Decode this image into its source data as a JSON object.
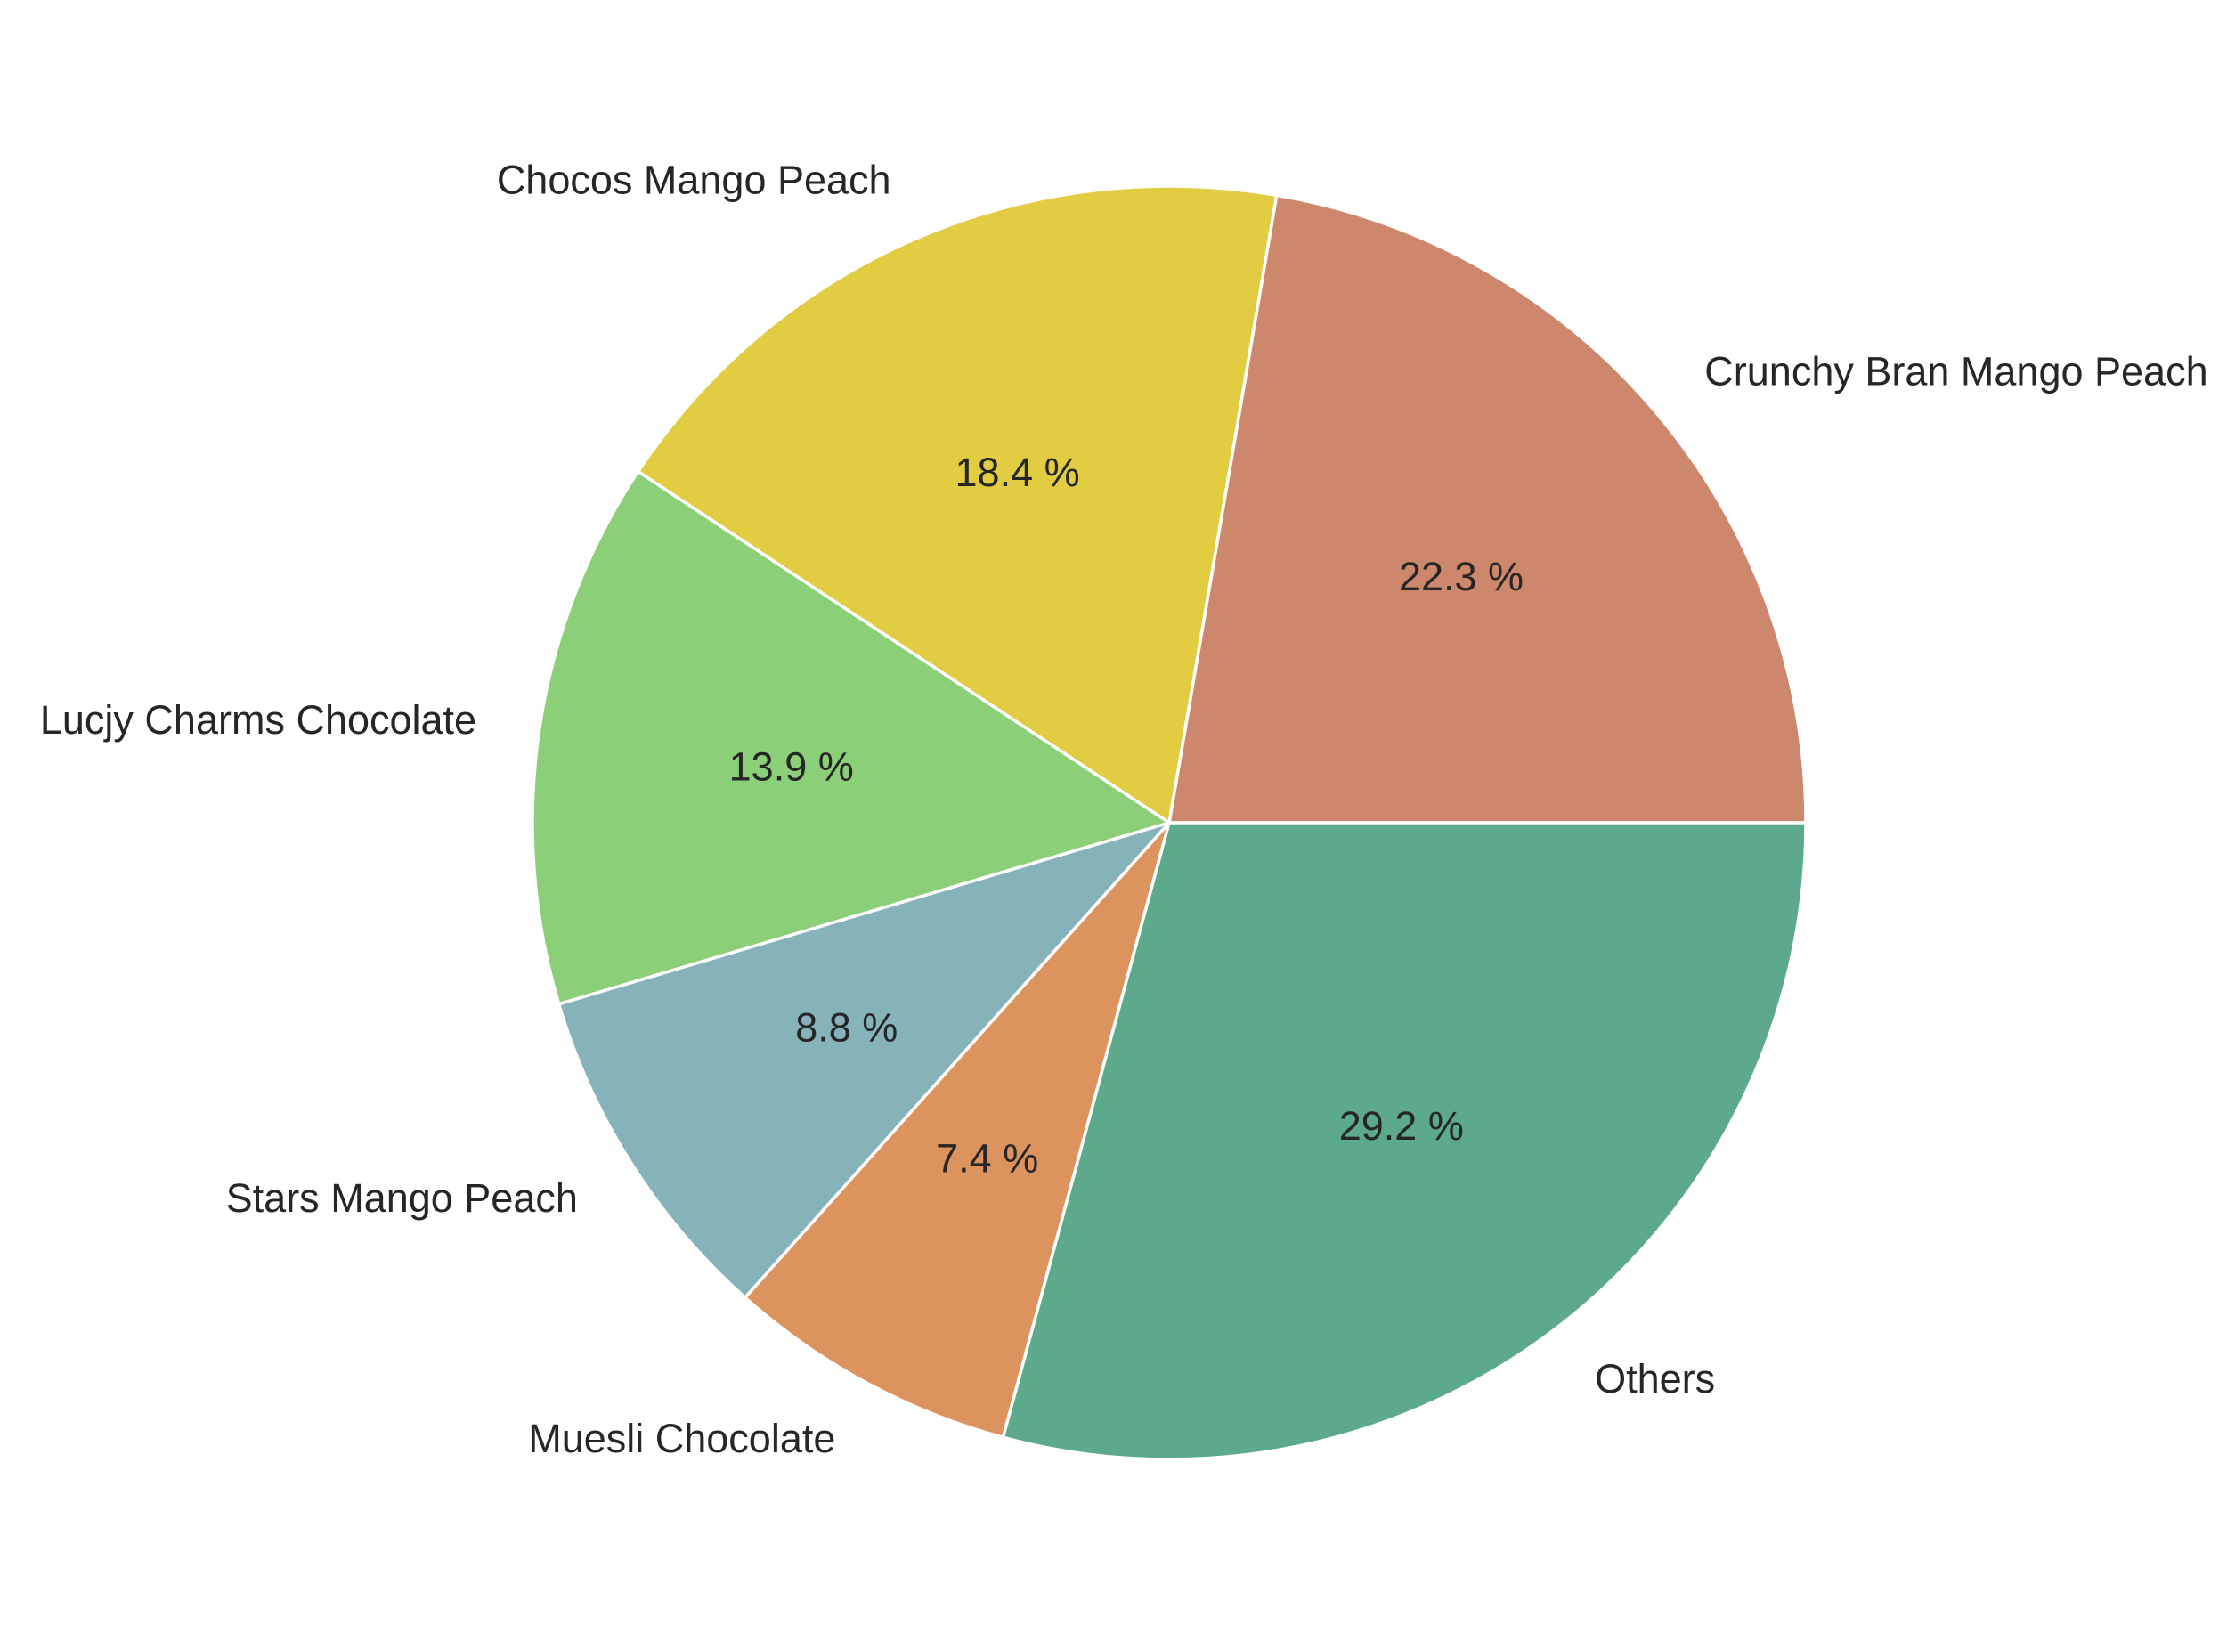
{
  "chart_data": {
    "type": "pie",
    "title": "",
    "start_angle_deg": 0,
    "direction": "counterclockwise",
    "slices": [
      {
        "label": "Crunchy Bran Mango Peach",
        "value": 22.3,
        "pct_text": "22.3 %",
        "color": "#cd876d"
      },
      {
        "label": "Chocos Mango Peach",
        "value": 18.4,
        "pct_text": "18.4 %",
        "color": "#e1cc42"
      },
      {
        "label": "Lucjy Charms Chocolate",
        "value": 13.9,
        "pct_text": "13.9 %",
        "color": "#8bcf79"
      },
      {
        "label": "Stars Mango Peach",
        "value": 8.8,
        "pct_text": "8.8 %",
        "color": "#85b3b9"
      },
      {
        "label": "Muesli Chocolate",
        "value": 7.4,
        "pct_text": "7.4 %",
        "color": "#dd935d"
      },
      {
        "label": "Others",
        "value": 29.2,
        "pct_text": "29.2 %",
        "color": "#5da98c"
      }
    ]
  }
}
